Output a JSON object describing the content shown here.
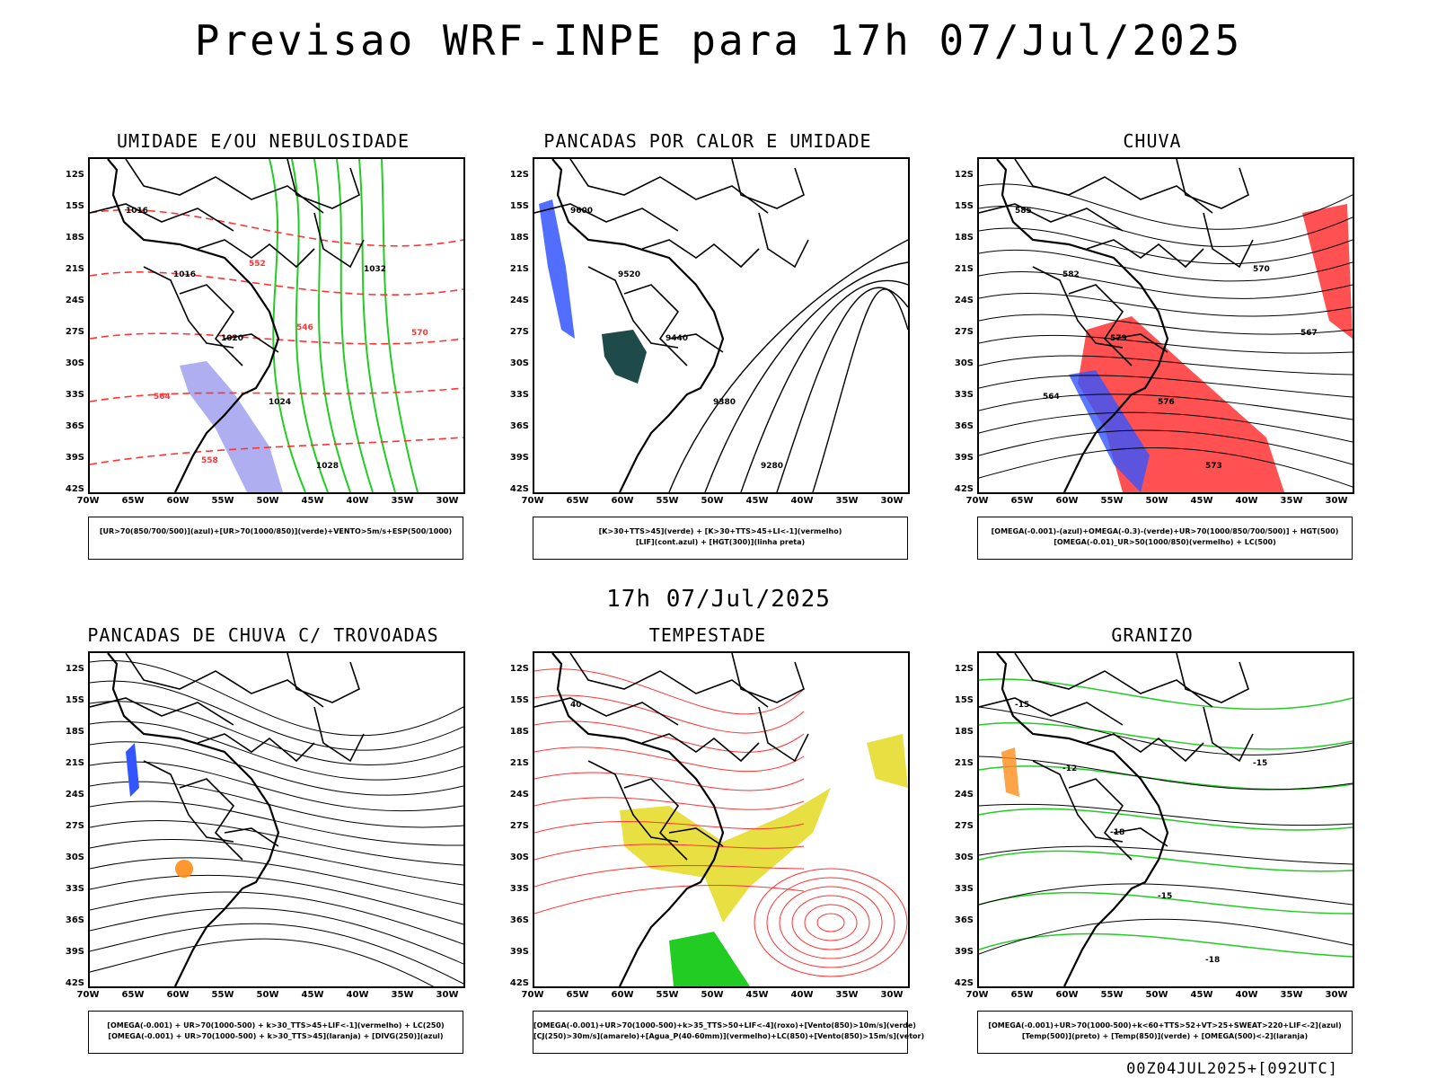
{
  "header": {
    "title": "Previsao WRF-INPE  para 17h 07/Jul/2025"
  },
  "middle": {
    "title": "17h 07/Jul/2025"
  },
  "footer": {
    "stamp": "00Z04JUL2025+[092UTC]"
  },
  "axes": {
    "lat_labels": [
      "12S",
      "15S",
      "18S",
      "21S",
      "24S",
      "27S",
      "30S",
      "33S",
      "36S",
      "39S",
      "42S"
    ],
    "lon_labels": [
      "70W",
      "65W",
      "60W",
      "55W",
      "50W",
      "45W",
      "40W",
      "35W",
      "30W"
    ]
  },
  "panels": [
    {
      "title": "UMIDADE E/OU NEBULOSIDADE",
      "legend": [
        "[UR>70(850/700/500)](azul)+[UR>70(1000/850)](verde)+VENTO>5m/s+ESP(500/1000)"
      ],
      "labels": [
        "1016",
        "1016",
        "1020",
        "1024",
        "1028",
        "1032",
        "570",
        "564",
        "558",
        "552",
        "546"
      ]
    },
    {
      "title": "PANCADAS POR CALOR E UMIDADE",
      "legend": [
        "[K>30+TTS>45](verde) + [K>30+TTS>45+LI<-1](vermelho)",
        "[LIF](cont.azul) + [HGT(300)](linha preta)"
      ],
      "labels": [
        "9600",
        "9520",
        "9440",
        "9380",
        "9280"
      ]
    },
    {
      "title": "CHUVA",
      "legend": [
        "[OMEGA(-0.001)-(azul)+OMEGA(-0.3)-(verde)+UR>70(1000/850/700/500)] + HGT(500)",
        "[OMEGA(-0.01)_UR>50(1000/850)(vermelho) + LC(500)"
      ],
      "labels": [
        "585",
        "582",
        "579",
        "576",
        "573",
        "570",
        "567",
        "564"
      ]
    },
    {
      "title": "PANCADAS DE CHUVA C/ TROVOADAS",
      "legend": [
        "[OMEGA(-0.001) + UR>70(1000-500) + k>30_TTS>45+LIF<-1](vermelho) + LC(250)",
        "[OMEGA(-0.001) + UR>70(1000-500) + k>30_TTS>45](laranja) + [DIVG(250)](azul)"
      ],
      "labels": []
    },
    {
      "title": "TEMPESTADE",
      "legend": [
        "[OMEGA(-0.001)+UR>70(1000-500)+k>35_TTS>50+LIF<-4](roxo)+[Vento(850)>10m/s](verde)",
        "[CJ(250)>30m/s](amarelo)+[Agua_P(40-60mm)](vermelho)+LC(850)+[Vento(850)>15m/s](vetor)"
      ],
      "labels": [
        "40"
      ]
    },
    {
      "title": "GRANIZO",
      "legend": [
        "[OMEGA(-0.001)+UR>70(1000-500)+k<60+TTS>52+VT>25+SWEAT>220+LIF<-2](azul)",
        "[Temp(500)](preto) + [Temp(850)](verde) + [OMEGA(500)<-2](laranja)"
      ],
      "labels": [
        "-15",
        "-12",
        "-18",
        "-15",
        "-18",
        "-15"
      ]
    }
  ],
  "colors": {
    "green": "#22cc22",
    "red": "#ff3333",
    "blue": "#3355ff",
    "yellow": "#e6dc2e",
    "teal": "#1e4a4a",
    "orange": "#ff8c1a",
    "lavender": "#9a9aee"
  }
}
